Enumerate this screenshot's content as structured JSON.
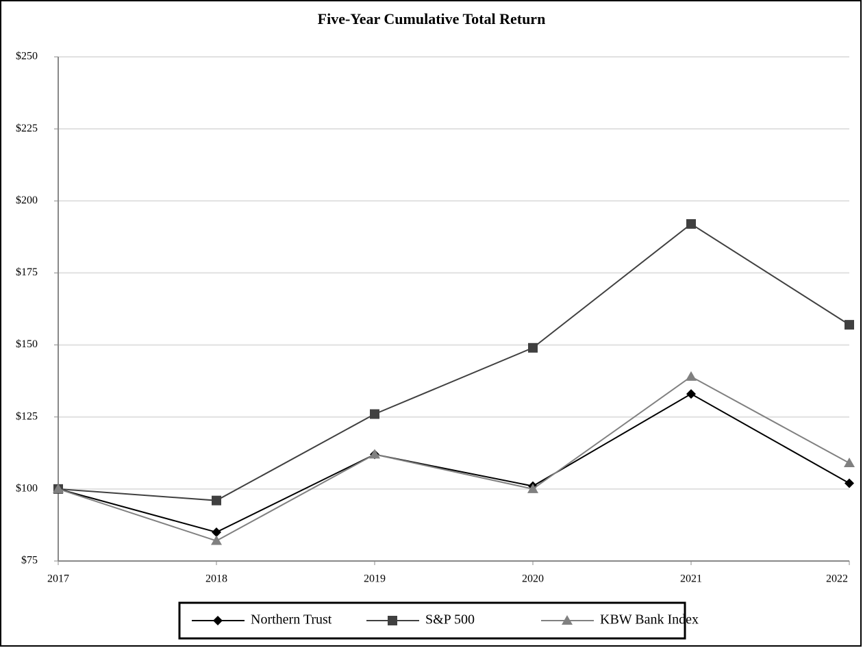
{
  "chart_data": {
    "type": "line",
    "title": "Five-Year Cumulative Total Return",
    "x": [
      "2017",
      "2018",
      "2019",
      "2020",
      "2021",
      "2022"
    ],
    "series": [
      {
        "name": "Northern Trust",
        "color": "#000000",
        "marker": "diamond",
        "values": [
          100,
          85,
          112,
          101,
          133,
          102
        ]
      },
      {
        "name": "S&P 500",
        "color": "#404040",
        "marker": "square",
        "values": [
          100,
          96,
          126,
          149,
          192,
          157
        ]
      },
      {
        "name": "KBW Bank Index",
        "color": "#808080",
        "marker": "triangle",
        "values": [
          100,
          82,
          112,
          100,
          139,
          109
        ]
      }
    ],
    "ylim": [
      75,
      250
    ],
    "yticks": [
      {
        "value": 75,
        "label": "$75"
      },
      {
        "value": 100,
        "label": "$100"
      },
      {
        "value": 125,
        "label": "$125"
      },
      {
        "value": 150,
        "label": "$150"
      },
      {
        "value": 175,
        "label": "$175"
      },
      {
        "value": 200,
        "label": "$200"
      },
      {
        "value": 225,
        "label": "$225"
      },
      {
        "value": 250,
        "label": "$250"
      }
    ],
    "grid": true,
    "legend": "bottom"
  }
}
